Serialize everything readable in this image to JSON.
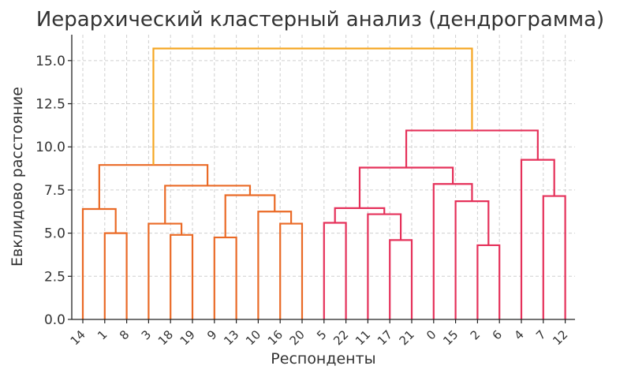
{
  "chart_data": {
    "type": "dendrogram",
    "title": "Иерархический кластерный анализ (дендрограмма)",
    "xlabel": "Респонденты",
    "ylabel": "Евклидово расстояние",
    "ylim": [
      0,
      16.5
    ],
    "yticks": [
      "0.0",
      "2.5",
      "5.0",
      "7.5",
      "10.0",
      "12.5",
      "15.0"
    ],
    "grid": true,
    "leaves": [
      "14",
      "1",
      "8",
      "3",
      "18",
      "19",
      "9",
      "13",
      "10",
      "16",
      "20",
      "5",
      "22",
      "11",
      "17",
      "21",
      "0",
      "15",
      "2",
      "6",
      "4",
      "7",
      "12"
    ],
    "colors": {
      "cluster_left": "#ea6a26",
      "cluster_right": "#e5315a",
      "root": "#f5a623",
      "axis": "#222222",
      "grid": "#cfcfcf"
    },
    "merges": [
      {
        "left": "1",
        "right": "8",
        "height": 5.0,
        "color": "cluster_left"
      },
      {
        "left": "14",
        "right": "1+8",
        "height": 6.4,
        "color": "cluster_left"
      },
      {
        "left": "18",
        "right": "19",
        "height": 4.9,
        "color": "cluster_left"
      },
      {
        "left": "3",
        "right": "18+19",
        "height": 5.55,
        "color": "cluster_left"
      },
      {
        "left": "9",
        "right": "13",
        "height": 4.75,
        "color": "cluster_left"
      },
      {
        "left": "16",
        "right": "20",
        "height": 5.55,
        "color": "cluster_left"
      },
      {
        "left": "10",
        "right": "16+20",
        "height": 6.25,
        "color": "cluster_left"
      },
      {
        "left": "9+13",
        "right": "10+16+20",
        "height": 7.2,
        "color": "cluster_left"
      },
      {
        "left": "3+18+19",
        "right": "9+13+10+16+20",
        "height": 7.75,
        "color": "cluster_left"
      },
      {
        "left": "14+1+8",
        "right": "3+18+19+9+13+10+16+20",
        "height": 8.95,
        "color": "cluster_left"
      },
      {
        "left": "5",
        "right": "22",
        "height": 5.6,
        "color": "cluster_right"
      },
      {
        "left": "17",
        "right": "21",
        "height": 4.6,
        "color": "cluster_right"
      },
      {
        "left": "11",
        "right": "17+21",
        "height": 6.1,
        "color": "cluster_right"
      },
      {
        "left": "5+22",
        "right": "11+17+21",
        "height": 6.45,
        "color": "cluster_right"
      },
      {
        "left": "2",
        "right": "6",
        "height": 4.3,
        "color": "cluster_right"
      },
      {
        "left": "15",
        "right": "2+6",
        "height": 6.85,
        "color": "cluster_right"
      },
      {
        "left": "0",
        "right": "15+2+6",
        "height": 7.85,
        "color": "cluster_right"
      },
      {
        "left": "5+22+11+17+21",
        "right": "0+15+2+6",
        "height": 8.8,
        "color": "cluster_right"
      },
      {
        "left": "7",
        "right": "12",
        "height": 7.15,
        "color": "cluster_right"
      },
      {
        "left": "4",
        "right": "7+12",
        "height": 9.25,
        "color": "cluster_right"
      },
      {
        "left": "5+22+11+17+21+0+15+2+6",
        "right": "4+7+12",
        "height": 10.95,
        "color": "cluster_right"
      },
      {
        "left": "14+1+8+3+18+19+9+13+10+16+20",
        "right": "5+22+11+17+21+0+15+2+6+4+7+12",
        "height": 15.7,
        "color": "root"
      }
    ]
  }
}
